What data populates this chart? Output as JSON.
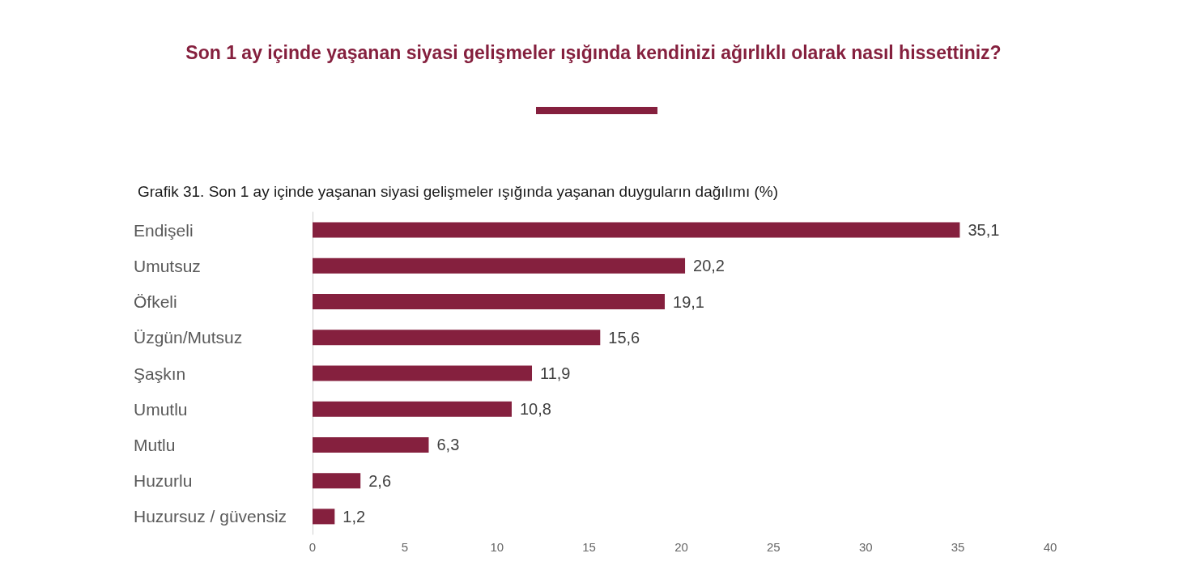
{
  "chart_data": {
    "type": "bar",
    "orientation": "horizontal",
    "title": "Son 1 ay içinde yaşanan siyasi gelişmeler ışığında kendinizi ağırlıklı olarak nasıl hissettiniz?",
    "subtitle": "Grafik 31. Son 1 ay içinde yaşanan siyasi gelişmeler ışığında yaşanan duyguların dağılımı (%)",
    "categories": [
      "Endişeli",
      "Umutsuz",
      "Öfkeli",
      "Üzgün/Mutsuz",
      "Şaşkın",
      "Umutlu",
      "Mutlu",
      "Huzurlu",
      "Huzursuz / güvensiz"
    ],
    "values": [
      35.1,
      20.2,
      19.1,
      15.6,
      11.9,
      10.8,
      6.3,
      2.6,
      1.2
    ],
    "value_labels": [
      "35,1",
      "20,2",
      "19,1",
      "15,6",
      "11,9",
      "10,8",
      "6,3",
      "2,6",
      "1,2"
    ],
    "color": "#85203e",
    "xlim": [
      0,
      40
    ],
    "xticks": [
      0,
      5,
      10,
      15,
      20,
      25,
      30,
      35,
      40
    ],
    "grid": false
  }
}
